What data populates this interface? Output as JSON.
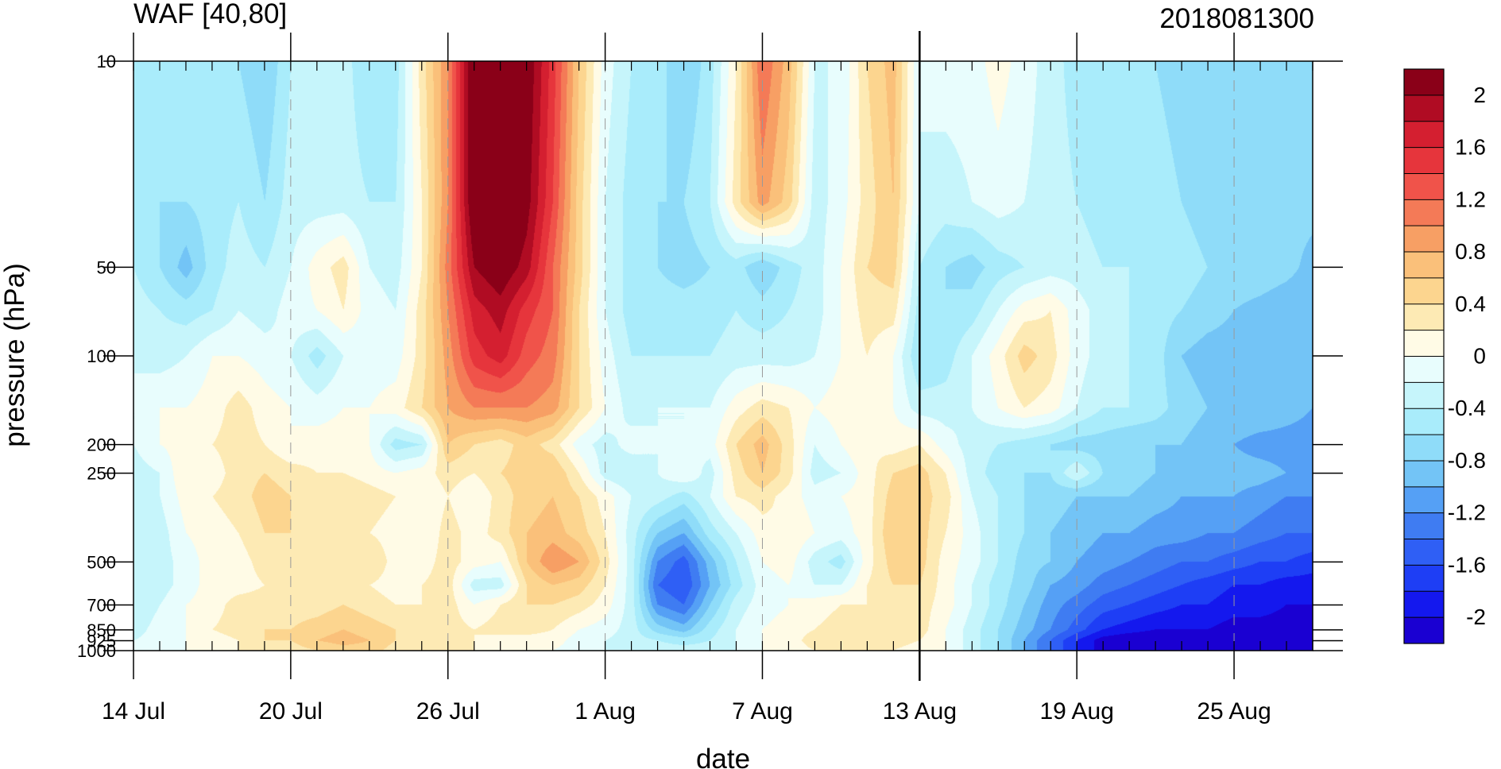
{
  "chart_data": {
    "type": "heatmap",
    "title_left": "WAF [40,80]",
    "title_right": "2018081300",
    "xlabel": "date",
    "ylabel": "pressure (hPa)",
    "x_tick_labels": [
      {
        "day": 0,
        "label": "14 Jul"
      },
      {
        "day": 6,
        "label": "20 Jul"
      },
      {
        "day": 12,
        "label": "26 Jul"
      },
      {
        "day": 18,
        "label": "1 Aug"
      },
      {
        "day": 24,
        "label": "7 Aug"
      },
      {
        "day": 30,
        "label": "13 Aug"
      },
      {
        "day": 36,
        "label": "19 Aug"
      },
      {
        "day": 42,
        "label": "25 Aug"
      }
    ],
    "x_range_days": [
      0,
      45
    ],
    "x_start_date": "2018-07-14",
    "forecast_start_day": 30,
    "y_tick_labels": [
      {
        "p": 10,
        "label": "10"
      },
      {
        "p": 50,
        "label": "50"
      },
      {
        "p": 100,
        "label": "100"
      },
      {
        "p": 200,
        "label": "200"
      },
      {
        "p": 250,
        "label": "250"
      },
      {
        "p": 500,
        "label": "500"
      },
      {
        "p": 700,
        "label": "700"
      },
      {
        "p": 850,
        "label": "850"
      },
      {
        "p": 925,
        "label": "925"
      },
      {
        "p": 1000,
        "label": "1000"
      }
    ],
    "y_range_hpa": [
      10,
      1000
    ],
    "y_scale": "log",
    "levels": [
      -2.2,
      -2,
      -1.8,
      -1.6,
      -1.4,
      -1.2,
      -1,
      -0.8,
      -0.6,
      -0.4,
      -0.2,
      0,
      0.2,
      0.4,
      0.6,
      0.8,
      1,
      1.2,
      1.4,
      1.6,
      1.8,
      2,
      2.2
    ],
    "colorbar_labels": [
      {
        "v": 2,
        "label": "2"
      },
      {
        "v": 1.6,
        "label": "1.6"
      },
      {
        "v": 1.2,
        "label": "1.2"
      },
      {
        "v": 0.8,
        "label": "0.8"
      },
      {
        "v": 0.4,
        "label": "0.4"
      },
      {
        "v": 0,
        "label": "0"
      },
      {
        "v": -0.4,
        "label": "-0.4"
      },
      {
        "v": -0.8,
        "label": "-0.8"
      },
      {
        "v": -1.2,
        "label": "-1.2"
      },
      {
        "v": -1.6,
        "label": "-1.6"
      },
      {
        "v": -2,
        "label": "-2"
      }
    ],
    "colors": [
      "#1a00d2",
      "#1418ee",
      "#1e3ef5",
      "#2f5ff5",
      "#3f7cf2",
      "#55a0f5",
      "#73c4f6",
      "#8fdcf9",
      "#a9ecfb",
      "#c6f5fb",
      "#e8fdfd",
      "#fffbe6",
      "#fdeab4",
      "#fcd58f",
      "#fac07a",
      "#f79f64",
      "#f47a57",
      "#f0534a",
      "#e6353c",
      "#d41f30",
      "#b00c23",
      "#8a0018"
    ],
    "pressure_levels": [
      10,
      30,
      50,
      70,
      100,
      150,
      200,
      250,
      300,
      400,
      500,
      600,
      700,
      850,
      925,
      1000
    ],
    "days": [
      0,
      1,
      2,
      3,
      4,
      5,
      6,
      7,
      8,
      9,
      10,
      11,
      12,
      13,
      14,
      15,
      16,
      17,
      18,
      19,
      20,
      21,
      22,
      23,
      24,
      25,
      26,
      27,
      28,
      29,
      30,
      31,
      32,
      33,
      34,
      35,
      36,
      37,
      38,
      39,
      40,
      41,
      42,
      43,
      44,
      45
    ],
    "values": [
      [
        -0.6,
        -0.5,
        -0.5,
        -0.4,
        -0.6,
        -0.8,
        -0.4,
        -0.3,
        -0.3,
        -0.6,
        -0.5,
        0.3,
        1.0,
        2.3,
        2.4,
        2.2,
        1.5,
        0.6,
        -0.1,
        -0.4,
        -0.5,
        -0.8,
        -0.5,
        0.2,
        1.2,
        0.7,
        -0.2,
        -0.2,
        0.4,
        0.7,
        -0.2,
        -0.1,
        -0.1,
        0.1,
        -0.1,
        -0.3,
        -0.5,
        -0.6,
        -0.6,
        -0.6,
        -0.7,
        -0.8,
        -0.8,
        -0.8,
        -0.8,
        -0.8
      ],
      [
        -0.5,
        -0.6,
        -0.6,
        -0.5,
        -0.4,
        -0.6,
        -0.3,
        -0.3,
        -0.3,
        -0.4,
        -0.4,
        0.2,
        1.0,
        2.3,
        2.4,
        2.1,
        1.4,
        0.5,
        -0.2,
        -0.5,
        -0.6,
        -0.6,
        -0.4,
        0.3,
        0.9,
        0.5,
        -0.3,
        -0.1,
        0.3,
        0.6,
        -0.2,
        -0.3,
        -0.2,
        -0.1,
        -0.2,
        -0.3,
        -0.4,
        -0.5,
        -0.5,
        -0.5,
        -0.6,
        -0.7,
        -0.7,
        -0.7,
        -0.7,
        -0.7
      ],
      [
        -0.4,
        -0.6,
        -0.9,
        -0.5,
        -0.3,
        -0.4,
        -0.2,
        0.1,
        0.3,
        -0.2,
        -0.3,
        0.2,
        1.1,
        2.0,
        2.2,
        1.9,
        1.2,
        0.5,
        -0.2,
        -0.5,
        -0.6,
        -0.7,
        -0.6,
        -0.5,
        -0.8,
        -0.5,
        -0.3,
        0.0,
        0.4,
        0.5,
        -0.4,
        -0.6,
        -0.7,
        -0.5,
        -0.4,
        -0.3,
        -0.3,
        -0.4,
        -0.4,
        -0.5,
        -0.5,
        -0.6,
        -0.6,
        -0.6,
        -0.7,
        -0.9
      ],
      [
        -0.3,
        -0.4,
        -0.5,
        -0.4,
        -0.2,
        -0.3,
        -0.1,
        0.0,
        0.2,
        -0.1,
        -0.2,
        0.3,
        1.0,
        1.7,
        1.9,
        1.5,
        1.2,
        0.4,
        -0.2,
        -0.5,
        -0.5,
        -0.5,
        -0.5,
        -0.4,
        -0.5,
        -0.4,
        -0.3,
        0.0,
        0.3,
        0.3,
        -0.5,
        -0.6,
        -0.5,
        -0.2,
        0.1,
        0.2,
        -0.1,
        -0.3,
        -0.4,
        -0.5,
        -0.6,
        -0.7,
        -0.8,
        -0.9,
        -1.0,
        -1.0
      ],
      [
        -0.2,
        -0.3,
        -0.2,
        0.0,
        0.0,
        -0.1,
        -0.2,
        -0.5,
        -0.2,
        -0.1,
        -0.1,
        0.3,
        0.9,
        1.5,
        1.7,
        1.3,
        1.1,
        0.4,
        -0.1,
        -0.4,
        -0.4,
        -0.4,
        -0.4,
        -0.3,
        -0.3,
        -0.3,
        -0.2,
        0.0,
        0.2,
        0.0,
        -0.6,
        -0.5,
        -0.2,
        0.1,
        0.5,
        0.3,
        -0.1,
        -0.3,
        -0.4,
        -0.5,
        -0.8,
        -0.9,
        -0.9,
        -0.9,
        -1.0,
        -1.0
      ],
      [
        -0.2,
        0.0,
        0.0,
        0.1,
        0.3,
        0.1,
        0.0,
        -0.1,
        0.0,
        0.0,
        0.1,
        0.4,
        0.8,
        1.0,
        1.0,
        1.0,
        0.9,
        0.4,
        0.0,
        -0.3,
        -0.2,
        -0.2,
        -0.2,
        0.1,
        0.3,
        0.2,
        0.0,
        0.1,
        0.2,
        0.0,
        -0.3,
        -0.3,
        -0.2,
        0.0,
        0.2,
        0.1,
        -0.2,
        -0.4,
        -0.4,
        -0.5,
        -0.7,
        -0.8,
        -0.8,
        -0.8,
        -0.9,
        -1.0
      ],
      [
        -0.2,
        0.0,
        0.1,
        0.2,
        0.3,
        0.2,
        0.0,
        0.1,
        0.1,
        0.0,
        -0.5,
        -0.4,
        0.6,
        0.4,
        0.3,
        0.5,
        0.3,
        -0.1,
        -0.3,
        -0.1,
        -0.2,
        -0.2,
        -0.1,
        0.4,
        0.7,
        0.3,
        -0.2,
        0.0,
        0.2,
        0.1,
        0.2,
        -0.1,
        -0.3,
        -0.4,
        -0.5,
        -0.6,
        -0.7,
        -0.7,
        -0.8,
        -0.8,
        -0.8,
        -0.9,
        -1.0,
        -1.1,
        -1.1,
        -1.1
      ],
      [
        -0.3,
        -0.2,
        0.2,
        0.1,
        0.3,
        0.4,
        0.3,
        0.2,
        0.2,
        0.1,
        0.0,
        0.1,
        0.3,
        0.2,
        0.4,
        0.5,
        0.6,
        0.2,
        -0.3,
        -0.4,
        -0.2,
        0.0,
        -0.3,
        0.3,
        0.6,
        0.3,
        -0.3,
        -0.2,
        0.1,
        0.4,
        0.5,
        0.2,
        -0.3,
        -0.5,
        -0.6,
        -0.6,
        -0.2,
        -0.6,
        -0.7,
        -0.8,
        -0.9,
        -0.9,
        -0.9,
        -0.9,
        -1.0,
        -1.1
      ],
      [
        -0.3,
        -0.2,
        0.1,
        0.2,
        0.3,
        0.5,
        0.4,
        0.3,
        0.4,
        0.3,
        0.2,
        0.0,
        0.2,
        0.0,
        0.3,
        0.5,
        0.6,
        0.4,
        0.1,
        -0.2,
        -0.3,
        -0.5,
        -0.2,
        0.2,
        0.3,
        0.1,
        -0.1,
        0.0,
        0.1,
        0.5,
        0.5,
        0.3,
        -0.2,
        -0.4,
        -0.6,
        -0.7,
        -0.8,
        -0.8,
        -0.8,
        -0.9,
        -1.0,
        -1.0,
        -1.0,
        -1.1,
        -1.2,
        -1.2
      ],
      [
        -0.3,
        -0.3,
        0.0,
        0.1,
        0.2,
        0.4,
        0.4,
        0.2,
        0.3,
        0.2,
        0.1,
        0.0,
        0.3,
        0.1,
        0.3,
        0.6,
        0.7,
        0.5,
        0.2,
        -0.3,
        -0.8,
        -1.0,
        -0.5,
        -0.2,
        0.1,
        0.2,
        0.0,
        -0.1,
        0.1,
        0.6,
        0.5,
        0.2,
        -0.1,
        -0.4,
        -0.6,
        -0.8,
        -0.9,
        -1.0,
        -1.0,
        -1.1,
        -1.1,
        -1.2,
        -1.2,
        -1.3,
        -1.4,
        -1.4
      ],
      [
        -0.4,
        -0.3,
        -0.1,
        0.1,
        0.1,
        0.3,
        0.2,
        0.3,
        0.3,
        0.4,
        0.1,
        0.1,
        0.3,
        0.1,
        0.0,
        0.6,
        1.0,
        0.8,
        0.3,
        -0.3,
        -1.2,
        -1.5,
        -0.9,
        -0.4,
        0.0,
        0.1,
        -0.3,
        -0.5,
        0.1,
        0.5,
        0.5,
        0.1,
        -0.1,
        -0.4,
        -0.7,
        -0.8,
        -1.0,
        -1.1,
        -1.2,
        -1.3,
        -1.4,
        -1.4,
        -1.5,
        -1.6,
        -1.6,
        -1.7
      ],
      [
        -0.3,
        -0.3,
        -0.1,
        0.1,
        0.1,
        0.2,
        0.2,
        0.3,
        0.3,
        0.2,
        0.1,
        0.2,
        0.3,
        -0.3,
        -0.3,
        0.4,
        0.6,
        0.5,
        0.2,
        -0.3,
        -1.4,
        -1.6,
        -1.0,
        -0.5,
        -0.1,
        0.0,
        -0.2,
        -0.2,
        0.2,
        0.4,
        0.4,
        0.1,
        -0.2,
        -0.5,
        -0.7,
        -1.0,
        -1.1,
        -1.3,
        -1.4,
        -1.5,
        -1.6,
        -1.7,
        -1.8,
        -1.8,
        -1.9,
        -1.9
      ],
      [
        -0.4,
        -0.2,
        0.0,
        0.1,
        0.3,
        0.3,
        0.3,
        0.3,
        0.4,
        0.3,
        0.2,
        0.2,
        0.3,
        0.0,
        0.2,
        0.4,
        0.4,
        0.3,
        0.1,
        -0.3,
        -1.2,
        -1.4,
        -0.8,
        -0.3,
        -0.1,
        0.0,
        0.1,
        0.2,
        0.2,
        0.4,
        0.3,
        0.1,
        -0.2,
        -0.5,
        -0.8,
        -1.1,
        -1.3,
        -1.5,
        -1.6,
        -1.7,
        -1.8,
        -1.8,
        -1.9,
        -1.9,
        -2.0,
        -2.0
      ],
      [
        -0.3,
        -0.1,
        0.0,
        0.2,
        0.3,
        0.4,
        0.4,
        0.5,
        0.6,
        0.5,
        0.4,
        0.3,
        0.3,
        0.2,
        0.3,
        0.3,
        0.2,
        0.0,
        -0.1,
        -0.3,
        -0.7,
        -0.9,
        -0.5,
        -0.2,
        0.0,
        0.1,
        0.2,
        0.3,
        0.3,
        0.4,
        0.3,
        0.0,
        -0.3,
        -0.6,
        -0.9,
        -1.2,
        -1.5,
        -1.8,
        -1.9,
        -2.0,
        -2.0,
        -2.0,
        -2.1,
        -2.1,
        -2.1,
        -2.1
      ],
      [
        -0.2,
        -0.1,
        0.0,
        0.1,
        0.2,
        0.4,
        0.4,
        0.6,
        0.7,
        0.6,
        0.4,
        0.3,
        0.3,
        0.2,
        0.1,
        0.1,
        0.1,
        -0.1,
        -0.2,
        -0.3,
        -0.4,
        -0.5,
        -0.4,
        -0.2,
        0.0,
        0.1,
        0.3,
        0.4,
        0.4,
        0.3,
        0.2,
        0.0,
        -0.3,
        -0.6,
        -1.0,
        -1.4,
        -1.8,
        -2.1,
        -2.2,
        -2.2,
        -2.2,
        -2.2,
        -2.2,
        -2.2,
        -2.2,
        -2.2
      ],
      [
        -0.2,
        -0.1,
        0.0,
        0.1,
        0.2,
        0.3,
        0.3,
        0.4,
        0.5,
        0.5,
        0.3,
        0.2,
        0.2,
        0.2,
        0.1,
        0.0,
        0.0,
        -0.1,
        -0.2,
        -0.2,
        -0.3,
        -0.3,
        -0.3,
        -0.2,
        0.0,
        0.1,
        0.2,
        0.3,
        0.3,
        0.2,
        0.1,
        0.0,
        -0.3,
        -0.6,
        -1.0,
        -1.4,
        -1.8,
        -2.1,
        -2.2,
        -2.2,
        -2.2,
        -2.2,
        -2.2,
        -2.2,
        -2.2,
        -2.2
      ]
    ]
  }
}
